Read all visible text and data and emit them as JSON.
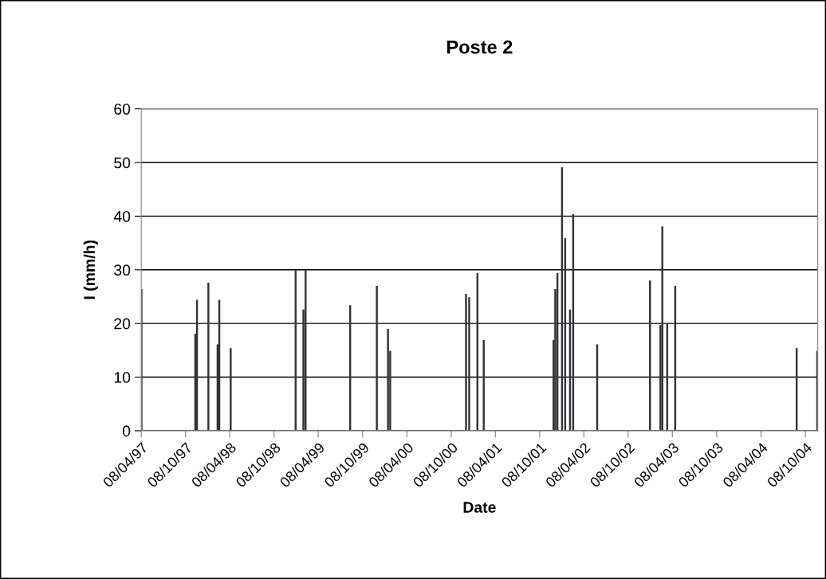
{
  "chart_data": {
    "type": "bar",
    "title": "Poste 2",
    "xlabel": "Date",
    "ylabel": "I (mm/h)",
    "color": "#333338",
    "x": [
      "1997-04-09",
      "1997-11-17",
      "1997-11-24",
      "1998-01-10",
      "1998-02-17",
      "1998-02-24",
      "1998-04-12",
      "1999-01-05",
      "1999-02-06",
      "1999-02-15",
      "1999-08-18",
      "1999-12-06",
      "2000-01-21",
      "2000-01-30",
      "2000-12-08",
      "2000-12-21",
      "2001-01-24",
      "2001-02-19",
      "2001-12-04",
      "2001-12-11",
      "2001-12-20",
      "2002-01-08",
      "2002-01-21",
      "2002-02-10",
      "2002-02-23",
      "2002-06-02",
      "2003-01-06",
      "2003-02-18",
      "2003-02-26",
      "2003-03-18",
      "2003-04-20",
      "2004-09-02",
      "2004-11-26"
    ],
    "values": [
      26.4,
      18.1,
      24.4,
      27.6,
      16.1,
      24.4,
      15.4,
      30.0,
      22.6,
      30.0,
      23.4,
      27.0,
      19.0,
      14.9,
      25.5,
      24.9,
      29.4,
      16.9,
      16.9,
      26.4,
      29.4,
      49.1,
      35.9,
      22.6,
      40.4,
      16.1,
      28.0,
      19.7,
      38.1,
      20.0,
      27.0,
      15.4,
      14.9
    ],
    "xlim": [
      "1997-04-08",
      "2004-11-28"
    ],
    "xticks": [
      {
        "value": "1997-04-08",
        "label": "08/04/97"
      },
      {
        "value": "1997-10-08",
        "label": "08/10/97"
      },
      {
        "value": "1998-04-08",
        "label": "08/04/98"
      },
      {
        "value": "1998-10-08",
        "label": "08/10/98"
      },
      {
        "value": "1999-04-08",
        "label": "08/04/99"
      },
      {
        "value": "1999-10-08",
        "label": "08/10/99"
      },
      {
        "value": "2000-04-08",
        "label": "08/04/00"
      },
      {
        "value": "2000-10-08",
        "label": "08/10/00"
      },
      {
        "value": "2001-04-08",
        "label": "08/04/01"
      },
      {
        "value": "2001-10-08",
        "label": "08/10/01"
      },
      {
        "value": "2002-04-08",
        "label": "08/04/02"
      },
      {
        "value": "2002-10-08",
        "label": "08/10/02"
      },
      {
        "value": "2003-04-08",
        "label": "08/04/03"
      },
      {
        "value": "2003-10-08",
        "label": "08/10/03"
      },
      {
        "value": "2004-04-08",
        "label": "08/04/04"
      },
      {
        "value": "2004-10-08",
        "label": "08/10/04"
      }
    ],
    "ylim": [
      0,
      60
    ],
    "yticks": [
      0,
      10,
      20,
      30,
      40,
      50,
      60
    ],
    "grid": "y",
    "legend": false
  }
}
